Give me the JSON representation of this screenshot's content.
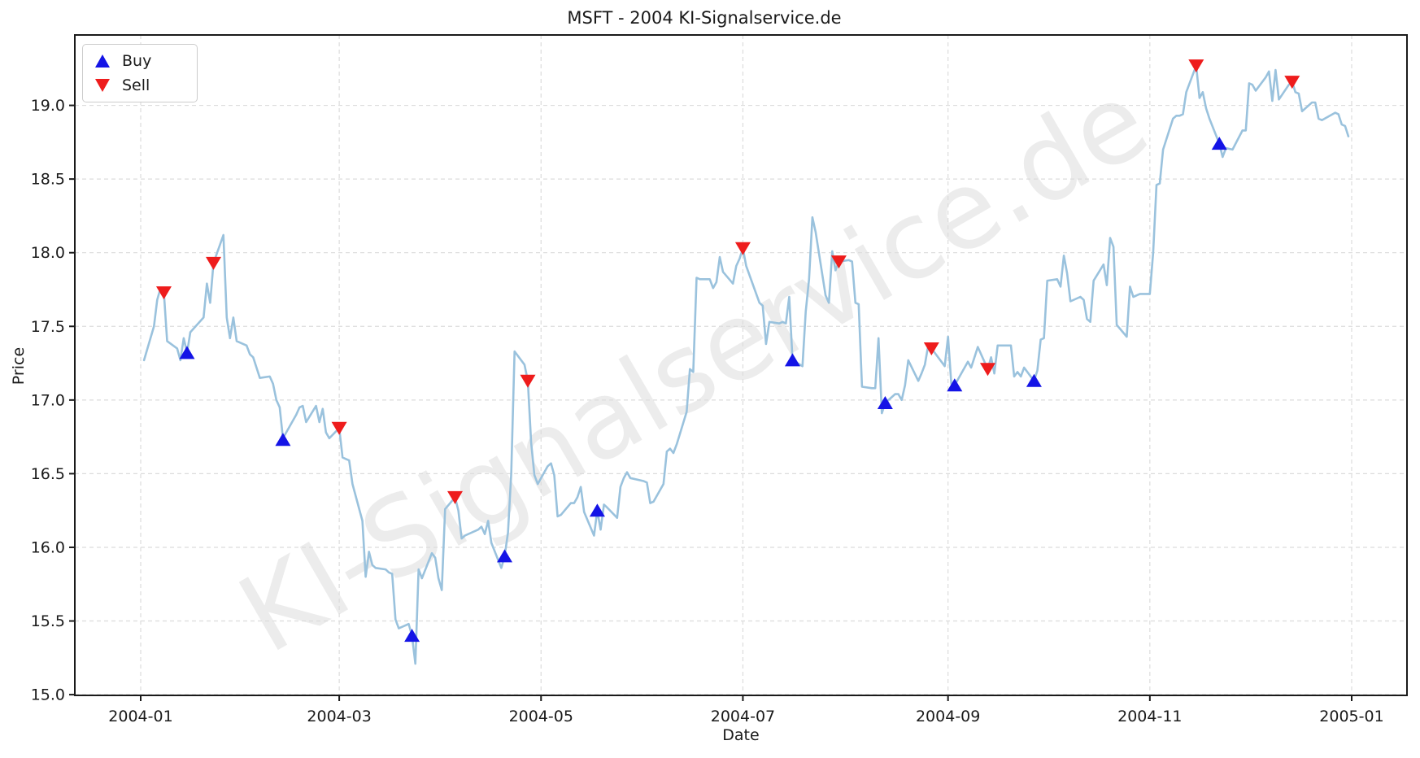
{
  "title": "MSFT - 2004 KI-Signalservice.de",
  "watermark": "KI-Signalservice.de",
  "axes": {
    "x_label": "Date",
    "y_label": "Price",
    "x_ticks": [
      "2004-01",
      "2004-03",
      "2004-05",
      "2004-07",
      "2004-09",
      "2004-11",
      "2005-01"
    ],
    "y_ticks": [
      15.0,
      15.5,
      16.0,
      16.5,
      17.0,
      17.5,
      18.0,
      18.5,
      19.0
    ]
  },
  "legend": {
    "items": [
      {
        "label": "Buy",
        "icon": "triangle-up-icon",
        "color": "#1414e6"
      },
      {
        "label": "Sell",
        "icon": "triangle-down-icon",
        "color": "#ee1c1c"
      }
    ]
  },
  "colors": {
    "line": "#9ac2dd",
    "buy": "#1414e6",
    "sell": "#ee1c1c",
    "grid": "#dcdcdc",
    "spine": "#1a1a1a",
    "text": "#1a1a1a"
  },
  "chart_data": {
    "type": "line",
    "title": "MSFT - 2004 KI-Signalservice.de",
    "xlabel": "Date",
    "ylabel": "Price",
    "x_range": [
      "2004-01-02",
      "2004-12-31"
    ],
    "ylim": [
      14.99,
      19.48
    ],
    "grid": true,
    "legend_position": "upper left",
    "series": [
      {
        "name": "MSFT close price",
        "points": [
          [
            "2004-01-02",
            17.27
          ],
          [
            "2004-01-05",
            17.5
          ],
          [
            "2004-01-06",
            17.68
          ],
          [
            "2004-01-07",
            17.76
          ],
          [
            "2004-01-08",
            17.73
          ],
          [
            "2004-01-09",
            17.4
          ],
          [
            "2004-01-12",
            17.35
          ],
          [
            "2004-01-13",
            17.27
          ],
          [
            "2004-01-14",
            17.42
          ],
          [
            "2004-01-15",
            17.32
          ],
          [
            "2004-01-16",
            17.46
          ],
          [
            "2004-01-20",
            17.56
          ],
          [
            "2004-01-21",
            17.79
          ],
          [
            "2004-01-22",
            17.66
          ],
          [
            "2004-01-23",
            17.93
          ],
          [
            "2004-01-26",
            18.12
          ],
          [
            "2004-01-27",
            17.56
          ],
          [
            "2004-01-28",
            17.42
          ],
          [
            "2004-01-29",
            17.56
          ],
          [
            "2004-01-30",
            17.4
          ],
          [
            "2004-02-02",
            17.37
          ],
          [
            "2004-02-03",
            17.31
          ],
          [
            "2004-02-04",
            17.29
          ],
          [
            "2004-02-05",
            17.22
          ],
          [
            "2004-02-06",
            17.15
          ],
          [
            "2004-02-09",
            17.16
          ],
          [
            "2004-02-10",
            17.11
          ],
          [
            "2004-02-11",
            17.0
          ],
          [
            "2004-02-12",
            16.95
          ],
          [
            "2004-02-13",
            16.74
          ],
          [
            "2004-02-17",
            16.9
          ],
          [
            "2004-02-18",
            16.95
          ],
          [
            "2004-02-19",
            16.96
          ],
          [
            "2004-02-20",
            16.85
          ],
          [
            "2004-02-23",
            16.96
          ],
          [
            "2004-02-24",
            16.85
          ],
          [
            "2004-02-25",
            16.94
          ],
          [
            "2004-02-26",
            16.78
          ],
          [
            "2004-02-27",
            16.74
          ],
          [
            "2004-03-01",
            16.81
          ],
          [
            "2004-03-02",
            16.61
          ],
          [
            "2004-03-03",
            16.6
          ],
          [
            "2004-03-04",
            16.59
          ],
          [
            "2004-03-05",
            16.43
          ],
          [
            "2004-03-08",
            16.18
          ],
          [
            "2004-03-09",
            15.8
          ],
          [
            "2004-03-10",
            15.97
          ],
          [
            "2004-03-11",
            15.88
          ],
          [
            "2004-03-12",
            15.86
          ],
          [
            "2004-03-15",
            15.85
          ],
          [
            "2004-03-16",
            15.83
          ],
          [
            "2004-03-17",
            15.82
          ],
          [
            "2004-03-18",
            15.51
          ],
          [
            "2004-03-19",
            15.45
          ],
          [
            "2004-03-22",
            15.48
          ],
          [
            "2004-03-23",
            15.4
          ],
          [
            "2004-03-24",
            15.21
          ],
          [
            "2004-03-25",
            15.85
          ],
          [
            "2004-03-26",
            15.79
          ],
          [
            "2004-03-29",
            15.96
          ],
          [
            "2004-03-30",
            15.93
          ],
          [
            "2004-03-31",
            15.79
          ],
          [
            "2004-04-01",
            15.71
          ],
          [
            "2004-04-02",
            16.26
          ],
          [
            "2004-04-05",
            16.34
          ],
          [
            "2004-04-06",
            16.25
          ],
          [
            "2004-04-07",
            16.06
          ],
          [
            "2004-04-08",
            16.08
          ],
          [
            "2004-04-12",
            16.12
          ],
          [
            "2004-04-13",
            16.14
          ],
          [
            "2004-04-14",
            16.09
          ],
          [
            "2004-04-15",
            16.18
          ],
          [
            "2004-04-16",
            16.03
          ],
          [
            "2004-04-19",
            15.86
          ],
          [
            "2004-04-20",
            15.94
          ],
          [
            "2004-04-21",
            16.1
          ],
          [
            "2004-04-22",
            16.5
          ],
          [
            "2004-04-23",
            17.33
          ],
          [
            "2004-04-26",
            17.24
          ],
          [
            "2004-04-27",
            17.13
          ],
          [
            "2004-04-28",
            16.71
          ],
          [
            "2004-04-29",
            16.49
          ],
          [
            "2004-04-30",
            16.43
          ],
          [
            "2004-05-03",
            16.55
          ],
          [
            "2004-05-04",
            16.57
          ],
          [
            "2004-05-05",
            16.49
          ],
          [
            "2004-05-06",
            16.21
          ],
          [
            "2004-05-07",
            16.22
          ],
          [
            "2004-05-10",
            16.3
          ],
          [
            "2004-05-11",
            16.3
          ],
          [
            "2004-05-12",
            16.34
          ],
          [
            "2004-05-13",
            16.41
          ],
          [
            "2004-05-14",
            16.24
          ],
          [
            "2004-05-17",
            16.08
          ],
          [
            "2004-05-18",
            16.25
          ],
          [
            "2004-05-19",
            16.12
          ],
          [
            "2004-05-20",
            16.29
          ],
          [
            "2004-05-21",
            16.27
          ],
          [
            "2004-05-24",
            16.2
          ],
          [
            "2004-05-25",
            16.41
          ],
          [
            "2004-05-26",
            16.47
          ],
          [
            "2004-05-27",
            16.51
          ],
          [
            "2004-05-28",
            16.47
          ],
          [
            "2004-06-01",
            16.45
          ],
          [
            "2004-06-02",
            16.44
          ],
          [
            "2004-06-03",
            16.3
          ],
          [
            "2004-06-04",
            16.31
          ],
          [
            "2004-06-07",
            16.43
          ],
          [
            "2004-06-08",
            16.65
          ],
          [
            "2004-06-09",
            16.67
          ],
          [
            "2004-06-10",
            16.64
          ],
          [
            "2004-06-11",
            16.7
          ],
          [
            "2004-06-14",
            16.92
          ],
          [
            "2004-06-15",
            17.21
          ],
          [
            "2004-06-16",
            17.19
          ],
          [
            "2004-06-17",
            17.83
          ],
          [
            "2004-06-18",
            17.82
          ],
          [
            "2004-06-21",
            17.82
          ],
          [
            "2004-06-22",
            17.76
          ],
          [
            "2004-06-23",
            17.8
          ],
          [
            "2004-06-24",
            17.97
          ],
          [
            "2004-06-25",
            17.87
          ],
          [
            "2004-06-28",
            17.79
          ],
          [
            "2004-06-29",
            17.91
          ],
          [
            "2004-06-30",
            17.96
          ],
          [
            "2004-07-01",
            18.03
          ],
          [
            "2004-07-02",
            17.91
          ],
          [
            "2004-07-06",
            17.66
          ],
          [
            "2004-07-07",
            17.64
          ],
          [
            "2004-07-08",
            17.38
          ],
          [
            "2004-07-09",
            17.53
          ],
          [
            "2004-07-12",
            17.52
          ],
          [
            "2004-07-13",
            17.53
          ],
          [
            "2004-07-14",
            17.52
          ],
          [
            "2004-07-15",
            17.7
          ],
          [
            "2004-07-16",
            17.27
          ],
          [
            "2004-07-19",
            17.23
          ],
          [
            "2004-07-20",
            17.6
          ],
          [
            "2004-07-21",
            17.82
          ],
          [
            "2004-07-22",
            18.24
          ],
          [
            "2004-07-23",
            18.14
          ],
          [
            "2004-07-26",
            17.71
          ],
          [
            "2004-07-27",
            17.66
          ],
          [
            "2004-07-28",
            18.01
          ],
          [
            "2004-07-29",
            17.88
          ],
          [
            "2004-07-30",
            17.94
          ],
          [
            "2004-08-02",
            17.95
          ],
          [
            "2004-08-03",
            17.94
          ],
          [
            "2004-08-04",
            17.66
          ],
          [
            "2004-08-05",
            17.65
          ],
          [
            "2004-08-06",
            17.09
          ],
          [
            "2004-08-09",
            17.08
          ],
          [
            "2004-08-10",
            17.08
          ],
          [
            "2004-08-11",
            17.42
          ],
          [
            "2004-08-12",
            16.91
          ],
          [
            "2004-08-13",
            16.98
          ],
          [
            "2004-08-16",
            17.04
          ],
          [
            "2004-08-17",
            17.04
          ],
          [
            "2004-08-18",
            17.0
          ],
          [
            "2004-08-19",
            17.1
          ],
          [
            "2004-08-20",
            17.27
          ],
          [
            "2004-08-23",
            17.13
          ],
          [
            "2004-08-24",
            17.18
          ],
          [
            "2004-08-25",
            17.24
          ],
          [
            "2004-08-26",
            17.37
          ],
          [
            "2004-08-27",
            17.35
          ],
          [
            "2004-08-30",
            17.26
          ],
          [
            "2004-08-31",
            17.23
          ],
          [
            "2004-09-01",
            17.43
          ],
          [
            "2004-09-02",
            17.11
          ],
          [
            "2004-09-03",
            17.1
          ],
          [
            "2004-09-07",
            17.26
          ],
          [
            "2004-09-08",
            17.22
          ],
          [
            "2004-09-09",
            17.29
          ],
          [
            "2004-09-10",
            17.36
          ],
          [
            "2004-09-13",
            17.21
          ],
          [
            "2004-09-14",
            17.29
          ],
          [
            "2004-09-15",
            17.18
          ],
          [
            "2004-09-16",
            17.37
          ],
          [
            "2004-09-17",
            17.37
          ],
          [
            "2004-09-20",
            17.37
          ],
          [
            "2004-09-21",
            17.16
          ],
          [
            "2004-09-22",
            17.19
          ],
          [
            "2004-09-23",
            17.16
          ],
          [
            "2004-09-24",
            17.22
          ],
          [
            "2004-09-27",
            17.13
          ],
          [
            "2004-09-28",
            17.2
          ],
          [
            "2004-09-29",
            17.41
          ],
          [
            "2004-09-30",
            17.42
          ],
          [
            "2004-10-01",
            17.81
          ],
          [
            "2004-10-04",
            17.82
          ],
          [
            "2004-10-05",
            17.77
          ],
          [
            "2004-10-06",
            17.98
          ],
          [
            "2004-10-07",
            17.86
          ],
          [
            "2004-10-08",
            17.67
          ],
          [
            "2004-10-11",
            17.7
          ],
          [
            "2004-10-12",
            17.68
          ],
          [
            "2004-10-13",
            17.55
          ],
          [
            "2004-10-14",
            17.53
          ],
          [
            "2004-10-15",
            17.81
          ],
          [
            "2004-10-18",
            17.92
          ],
          [
            "2004-10-19",
            17.78
          ],
          [
            "2004-10-20",
            18.1
          ],
          [
            "2004-10-21",
            18.04
          ],
          [
            "2004-10-22",
            17.51
          ],
          [
            "2004-10-25",
            17.43
          ],
          [
            "2004-10-26",
            17.77
          ],
          [
            "2004-10-27",
            17.7
          ],
          [
            "2004-10-28",
            17.71
          ],
          [
            "2004-10-29",
            17.72
          ],
          [
            "2004-11-01",
            17.72
          ],
          [
            "2004-11-02",
            18.0
          ],
          [
            "2004-11-03",
            18.46
          ],
          [
            "2004-11-04",
            18.47
          ],
          [
            "2004-11-05",
            18.7
          ],
          [
            "2004-11-08",
            18.91
          ],
          [
            "2004-11-09",
            18.93
          ],
          [
            "2004-11-10",
            18.93
          ],
          [
            "2004-11-11",
            18.94
          ],
          [
            "2004-11-12",
            19.09
          ],
          [
            "2004-11-15",
            19.27
          ],
          [
            "2004-11-16",
            19.05
          ],
          [
            "2004-11-17",
            19.09
          ],
          [
            "2004-11-18",
            18.98
          ],
          [
            "2004-11-19",
            18.91
          ],
          [
            "2004-11-22",
            18.74
          ],
          [
            "2004-11-23",
            18.65
          ],
          [
            "2004-11-24",
            18.71
          ],
          [
            "2004-11-26",
            18.7
          ],
          [
            "2004-11-29",
            18.83
          ],
          [
            "2004-11-30",
            18.83
          ],
          [
            "2004-12-01",
            19.15
          ],
          [
            "2004-12-02",
            19.14
          ],
          [
            "2004-12-03",
            19.1
          ],
          [
            "2004-12-06",
            19.19
          ],
          [
            "2004-12-07",
            19.23
          ],
          [
            "2004-12-08",
            19.03
          ],
          [
            "2004-12-09",
            19.24
          ],
          [
            "2004-12-10",
            19.04
          ],
          [
            "2004-12-13",
            19.14
          ],
          [
            "2004-12-14",
            19.16
          ],
          [
            "2004-12-15",
            19.09
          ],
          [
            "2004-12-16",
            19.08
          ],
          [
            "2004-12-17",
            18.96
          ],
          [
            "2004-12-20",
            19.02
          ],
          [
            "2004-12-21",
            19.02
          ],
          [
            "2004-12-22",
            18.91
          ],
          [
            "2004-12-23",
            18.9
          ],
          [
            "2004-12-27",
            18.95
          ],
          [
            "2004-12-28",
            18.94
          ],
          [
            "2004-12-29",
            18.87
          ],
          [
            "2004-12-30",
            18.86
          ],
          [
            "2004-12-31",
            18.79
          ]
        ]
      }
    ],
    "buy_signals": [
      [
        "2004-01-15",
        17.32
      ],
      [
        "2004-02-13",
        16.73
      ],
      [
        "2004-03-23",
        15.4
      ],
      [
        "2004-04-20",
        15.94
      ],
      [
        "2004-05-18",
        16.25
      ],
      [
        "2004-07-16",
        17.27
      ],
      [
        "2004-08-13",
        16.98
      ],
      [
        "2004-09-03",
        17.1
      ],
      [
        "2004-09-27",
        17.13
      ],
      [
        "2004-11-22",
        18.74
      ]
    ],
    "sell_signals": [
      [
        "2004-01-08",
        17.73
      ],
      [
        "2004-01-23",
        17.93
      ],
      [
        "2004-03-01",
        16.81
      ],
      [
        "2004-04-05",
        16.34
      ],
      [
        "2004-04-27",
        17.13
      ],
      [
        "2004-07-01",
        18.03
      ],
      [
        "2004-07-30",
        17.94
      ],
      [
        "2004-08-27",
        17.35
      ],
      [
        "2004-09-13",
        17.21
      ],
      [
        "2004-11-15",
        19.27
      ],
      [
        "2004-12-14",
        19.16
      ]
    ]
  }
}
